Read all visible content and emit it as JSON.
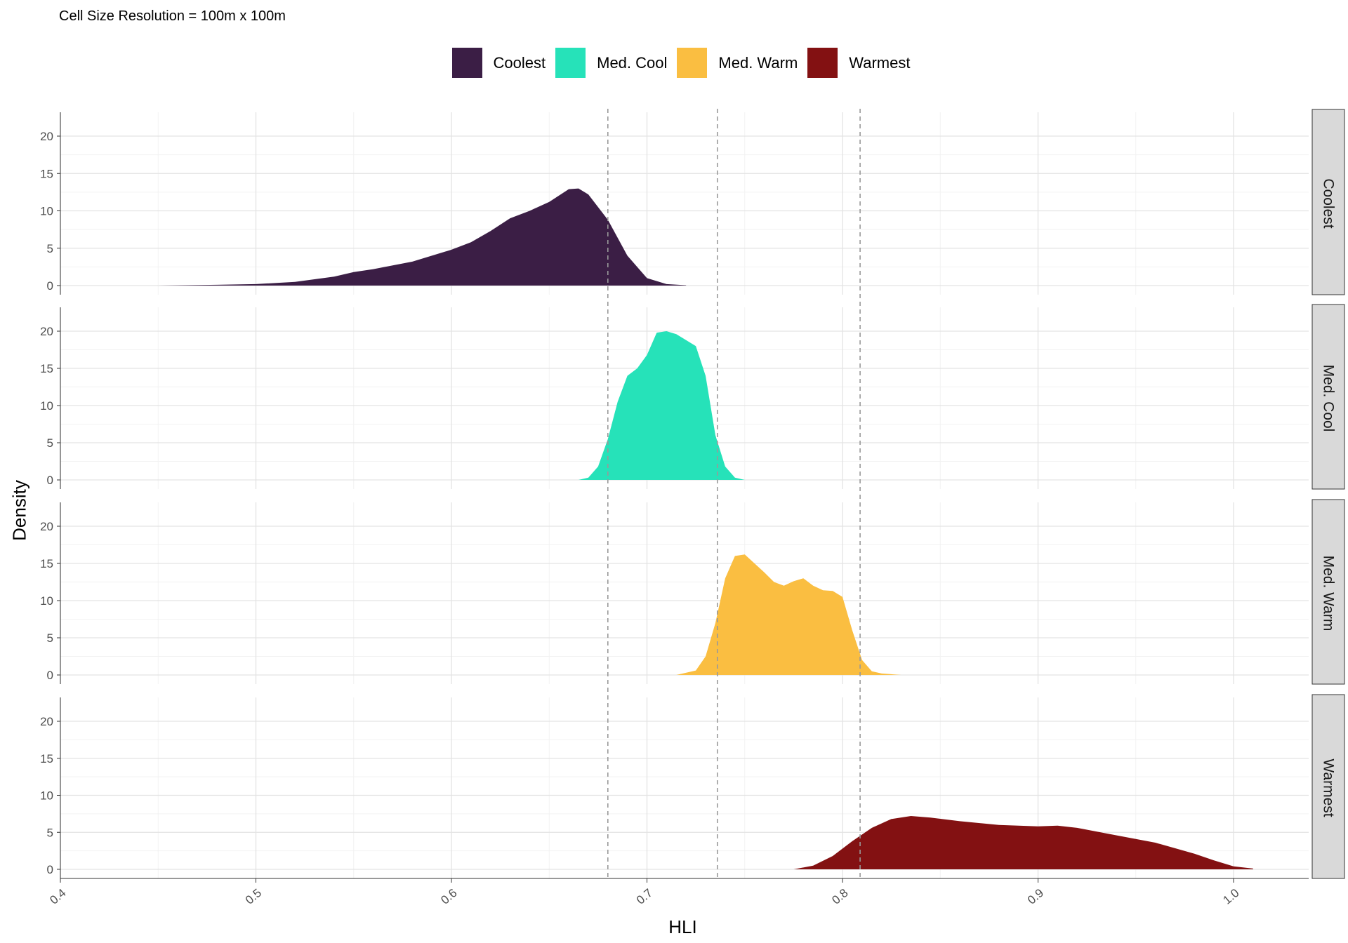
{
  "subtitle": "Cell Size Resolution = 100m x 100m",
  "legend": [
    {
      "label": "Coolest",
      "color": "#3B1E45"
    },
    {
      "label": "Med. Cool",
      "color": "#26E2B9"
    },
    {
      "label": "Med. Warm",
      "color": "#FABE41"
    },
    {
      "label": "Warmest",
      "color": "#831112"
    }
  ],
  "chart_data": {
    "type": "area",
    "subtitle": "Cell Size Resolution = 100m x 100m",
    "xlabel": "HLI",
    "ylabel": "Density",
    "xlim": [
      0.4,
      1.05
    ],
    "ylim": [
      0,
      21
    ],
    "x_ticks": [
      "0.4",
      "0.5",
      "0.6",
      "0.7",
      "0.8",
      "0.9",
      "1.0"
    ],
    "y_ticks": [
      "0",
      "5",
      "10",
      "15",
      "20"
    ],
    "grid": true,
    "legend_position": "top",
    "reference_lines": [
      0.68,
      0.736,
      0.809
    ],
    "facets": [
      "Coolest",
      "Med. Cool",
      "Med. Warm",
      "Warmest"
    ],
    "series": [
      {
        "name": "Coolest",
        "color": "#3B1E45",
        "x": [
          0.45,
          0.48,
          0.5,
          0.52,
          0.54,
          0.55,
          0.56,
          0.58,
          0.6,
          0.61,
          0.62,
          0.63,
          0.64,
          0.65,
          0.66,
          0.665,
          0.67,
          0.68,
          0.69,
          0.7,
          0.71,
          0.72
        ],
        "y": [
          0,
          0.1,
          0.2,
          0.5,
          1.2,
          1.8,
          2.2,
          3.2,
          4.8,
          5.8,
          7.3,
          9.0,
          10.0,
          11.2,
          12.9,
          13.0,
          12.2,
          8.8,
          4.0,
          1.0,
          0.2,
          0.05
        ]
      },
      {
        "name": "Med. Cool",
        "color": "#26E2B9",
        "x": [
          0.665,
          0.67,
          0.675,
          0.68,
          0.685,
          0.69,
          0.695,
          0.7,
          0.705,
          0.71,
          0.715,
          0.72,
          0.725,
          0.73,
          0.735,
          0.74,
          0.745,
          0.75
        ],
        "y": [
          0,
          0.3,
          1.8,
          5.5,
          10.5,
          14.0,
          15.0,
          16.8,
          19.8,
          20.0,
          19.6,
          18.8,
          18.0,
          14.0,
          6.0,
          1.8,
          0.3,
          0
        ]
      },
      {
        "name": "Med. Warm",
        "color": "#FABE41",
        "x": [
          0.715,
          0.725,
          0.73,
          0.735,
          0.74,
          0.745,
          0.75,
          0.755,
          0.76,
          0.765,
          0.77,
          0.775,
          0.78,
          0.785,
          0.79,
          0.795,
          0.8,
          0.805,
          0.81,
          0.815,
          0.82,
          0.83
        ],
        "y": [
          0,
          0.6,
          2.5,
          7.0,
          13.0,
          16.0,
          16.2,
          15.0,
          13.8,
          12.5,
          12.0,
          12.6,
          13.0,
          12.0,
          11.4,
          11.3,
          10.5,
          6.0,
          2.0,
          0.5,
          0.2,
          0
        ]
      },
      {
        "name": "Warmest",
        "color": "#831112",
        "x": [
          0.775,
          0.785,
          0.795,
          0.805,
          0.815,
          0.825,
          0.835,
          0.845,
          0.86,
          0.88,
          0.9,
          0.91,
          0.92,
          0.94,
          0.96,
          0.98,
          0.99,
          1.0,
          1.01
        ],
        "y": [
          0,
          0.5,
          1.8,
          3.8,
          5.6,
          6.8,
          7.2,
          7.0,
          6.5,
          6.0,
          5.8,
          5.9,
          5.6,
          4.6,
          3.6,
          2.1,
          1.2,
          0.4,
          0.1
        ]
      }
    ]
  }
}
